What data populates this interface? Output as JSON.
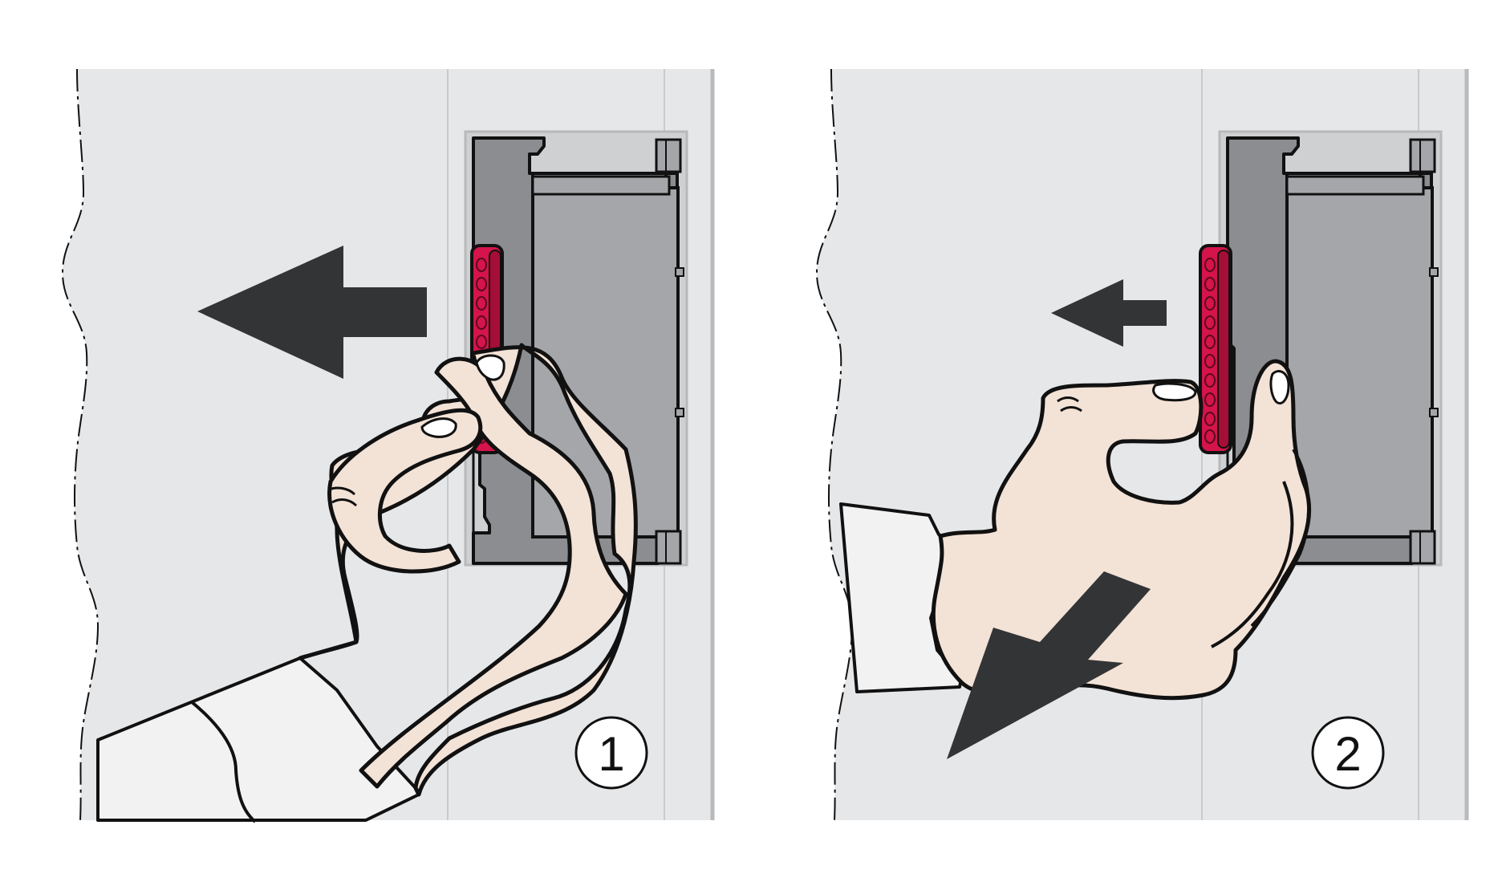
{
  "colors": {
    "background": "#ffffff",
    "wall": "#e6e7e9",
    "housing": "#8c8d90",
    "housing_inner": "#a5a6a9",
    "grip_red": "#d4144a",
    "grip_red_dark": "#a50e36",
    "skin": "#f3e2d6",
    "sleeve": "#f2f2f2",
    "arrow": "#333436",
    "outline": "#111111"
  },
  "panels": [
    {
      "step": "1",
      "icons": [
        "arrow-left-large-icon",
        "hand-icon",
        "red-grip-tab-icon"
      ]
    },
    {
      "step": "2",
      "icons": [
        "arrow-left-small-icon",
        "arrow-down-left-icon",
        "hand-icon",
        "red-grip-tab-icon"
      ]
    }
  ]
}
